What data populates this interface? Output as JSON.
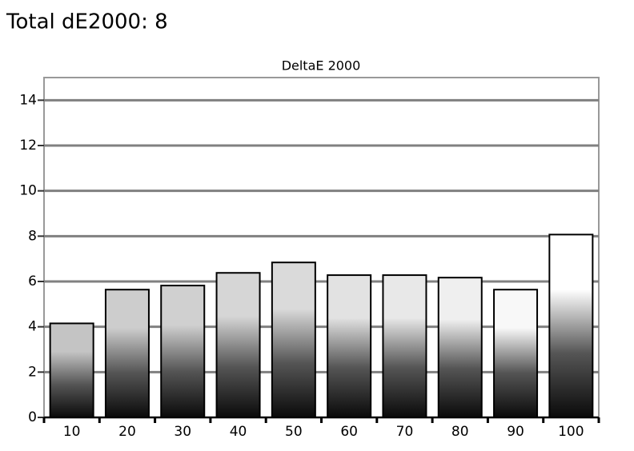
{
  "page_title": "Total dE2000: 8",
  "chart_data": {
    "type": "bar",
    "title": "DeltaE 2000",
    "categories": [
      "10",
      "20",
      "30",
      "40",
      "50",
      "60",
      "70",
      "80",
      "90",
      "100"
    ],
    "values": [
      4.15,
      5.64,
      5.82,
      6.38,
      6.84,
      6.28,
      6.28,
      6.17,
      5.64,
      8.07
    ],
    "colors": [
      "#c4c4c4",
      "#cdcdcd",
      "#d0d0d0",
      "#d6d6d6",
      "#dadada",
      "#e2e2e2",
      "#e8e8e8",
      "#efefef",
      "#f8f8f8",
      "#ffffff"
    ],
    "ylim": [
      0,
      15
    ],
    "yticks": [
      0,
      2,
      4,
      6,
      8,
      10,
      12,
      14
    ],
    "grid": true
  }
}
